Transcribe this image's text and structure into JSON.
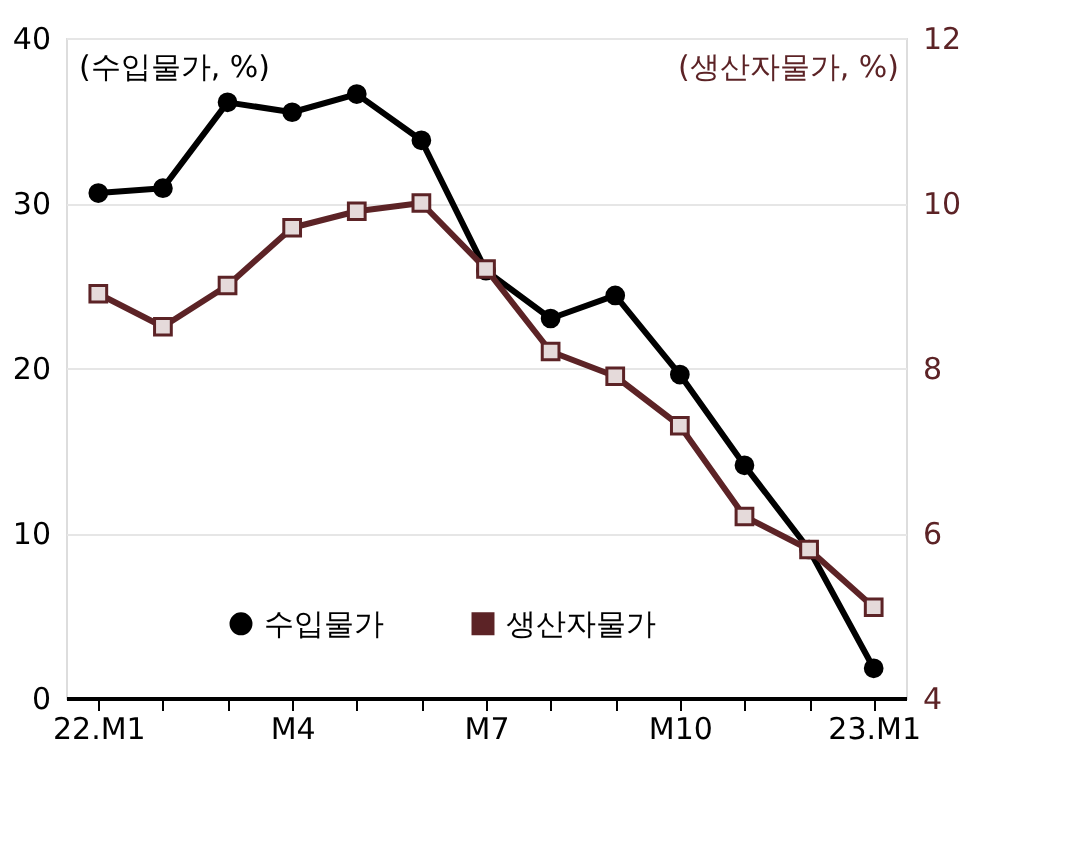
{
  "chart_data": {
    "type": "line",
    "ylabel": "(수입물가, %)",
    "y2label": "(생산자물가, %)",
    "categories": [
      "22.M1",
      null,
      null,
      "M4",
      null,
      null,
      "M7",
      null,
      null,
      "M10",
      null,
      null,
      "23.M1"
    ],
    "series": [
      {
        "name": "수입물가",
        "color": "#000000",
        "marker": "circle",
        "values": [
          30.6,
          30.9,
          36.1,
          35.5,
          36.6,
          33.8,
          25.9,
          23.0,
          24.4,
          19.6,
          14.1,
          9.0,
          1.8
        ]
      },
      {
        "name": "생산자물가",
        "color": "#5c2326",
        "marker": "square",
        "axis": "y2",
        "values": [
          8.9,
          8.5,
          9.0,
          9.7,
          9.9,
          10.0,
          9.2,
          8.2,
          7.9,
          7.3,
          6.2,
          5.8,
          5.1
        ]
      }
    ],
    "ylim": [
      0,
      40
    ],
    "yticks": [
      0,
      10,
      20,
      30,
      40
    ],
    "y2lim": [
      4,
      12
    ],
    "y2ticks": [
      4,
      6,
      8,
      10,
      12
    ],
    "grid": "y",
    "legend": "bottom",
    "line_style": "solid"
  }
}
